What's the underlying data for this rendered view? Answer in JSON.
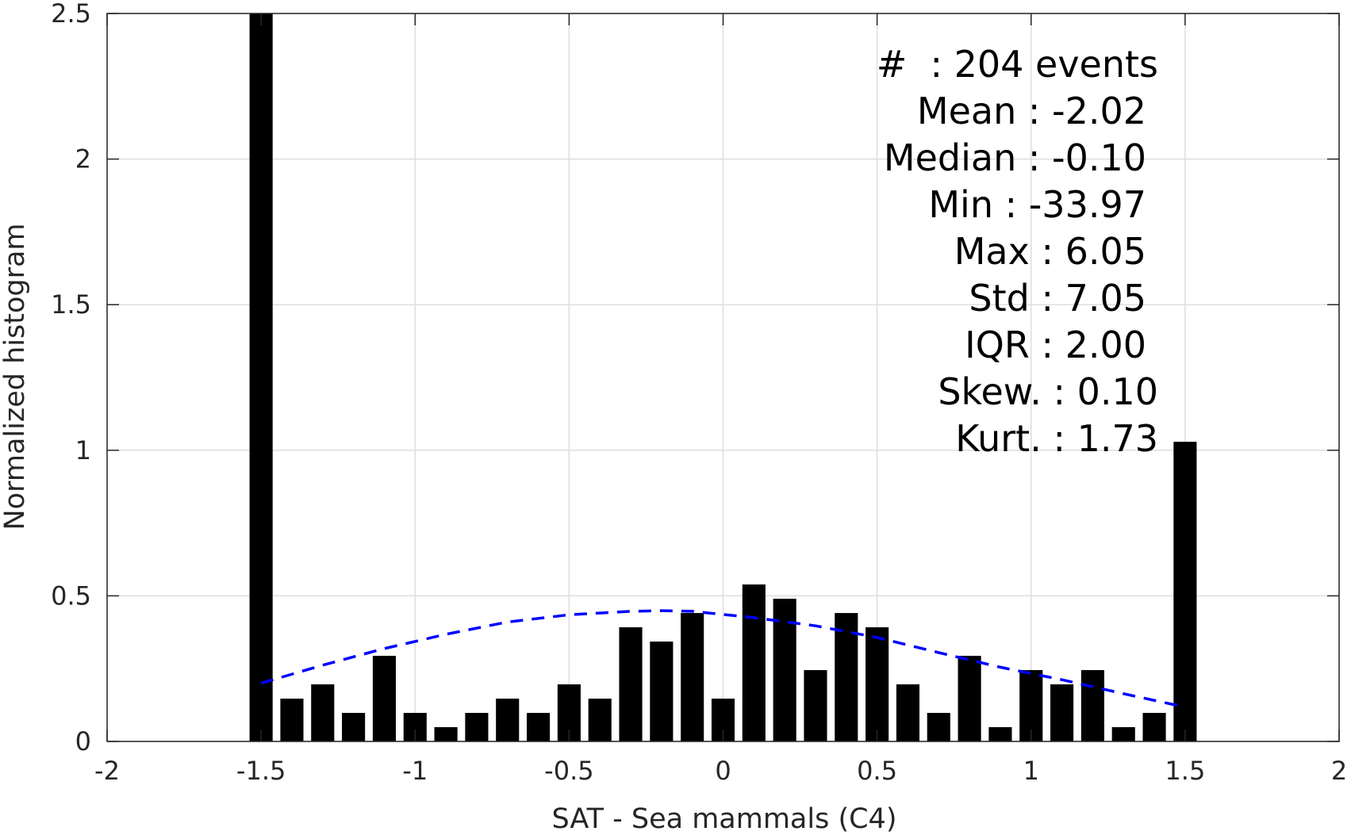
{
  "chart_data": {
    "type": "bar",
    "xlabel": "SAT - Sea mammals (C4)",
    "ylabel": "Normalized histogram",
    "xlim": [
      -2,
      2
    ],
    "ylim": [
      0,
      2.5
    ],
    "xticks": [
      "-2",
      "-1.5",
      "-1",
      "-0.5",
      "0",
      "0.5",
      "1",
      "1.5",
      "2"
    ],
    "yticks": [
      "0",
      "0.5",
      "1",
      "1.5",
      "2",
      "2.5"
    ],
    "grid": true,
    "bar_color": "#000000",
    "fit_color": "#0000ff",
    "bars": {
      "x": [
        -1.5,
        -1.4,
        -1.3,
        -1.2,
        -1.1,
        -1.0,
        -0.9,
        -0.8,
        -0.7,
        -0.6,
        -0.5,
        -0.4,
        -0.3,
        -0.2,
        -0.1,
        0.0,
        0.1,
        0.2,
        0.3,
        0.4,
        0.5,
        0.6,
        0.7,
        0.8,
        0.9,
        1.0,
        1.1,
        1.2,
        1.3,
        1.4,
        1.5
      ],
      "values": [
        2.5,
        0.147,
        0.196,
        0.098,
        0.294,
        0.098,
        0.049,
        0.098,
        0.147,
        0.098,
        0.196,
        0.147,
        0.392,
        0.343,
        0.441,
        0.147,
        0.539,
        0.49,
        0.245,
        0.441,
        0.392,
        0.196,
        0.098,
        0.294,
        0.049,
        0.245,
        0.196,
        0.245,
        0.049,
        0.098,
        1.029
      ]
    },
    "fit_curve": {
      "style": "dashed",
      "x": [
        -1.5,
        -1.3,
        -1.1,
        -0.9,
        -0.7,
        -0.5,
        -0.3,
        -0.2,
        -0.1,
        0.1,
        0.3,
        0.5,
        0.7,
        0.9,
        1.1,
        1.3,
        1.5
      ],
      "y": [
        0.2,
        0.262,
        0.319,
        0.368,
        0.41,
        0.435,
        0.447,
        0.449,
        0.447,
        0.425,
        0.397,
        0.357,
        0.305,
        0.255,
        0.212,
        0.164,
        0.118
      ]
    }
  },
  "stats": [
    "#  : 204 events",
    "Mean : -2.02",
    "Median : -0.10",
    "Min : -33.97",
    "Max : 6.05",
    "Std : 7.05",
    "IQR : 2.00",
    "Skew. : 0.10",
    "Kurt. : 1.73"
  ]
}
